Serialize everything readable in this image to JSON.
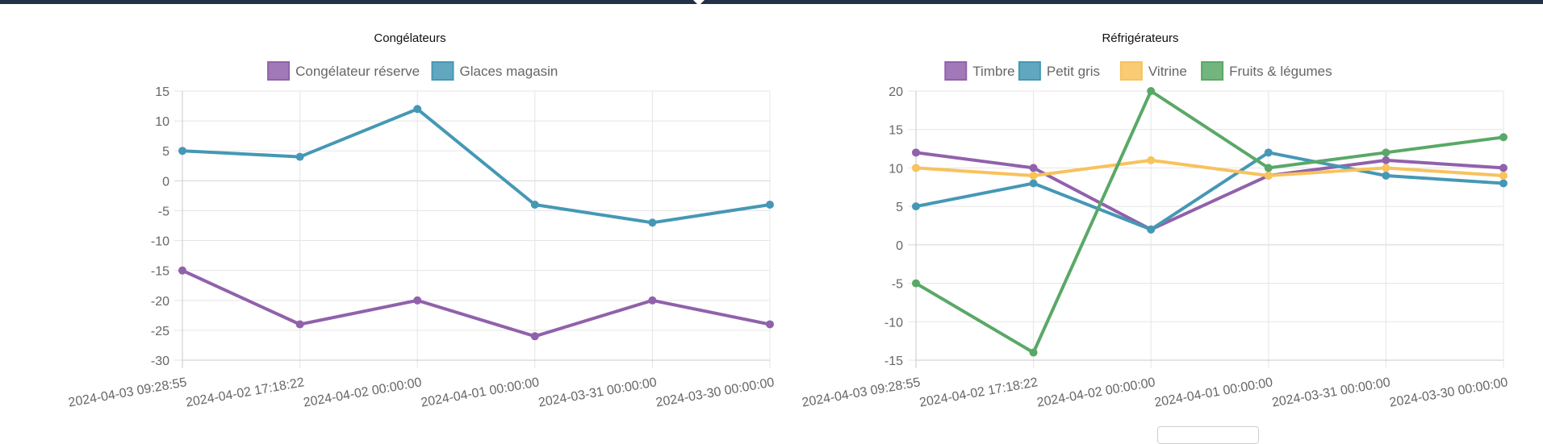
{
  "chart_data": [
    {
      "type": "line",
      "title": "Congélateurs",
      "categories": [
        "2024-04-03 09:28:55",
        "2024-04-02 17:18:22",
        "2024-04-02 00:00:00",
        "2024-04-01 00:00:00",
        "2024-03-31 00:00:00",
        "2024-03-30 00:00:00"
      ],
      "series": [
        {
          "name": "Congélateur réserve",
          "color": "#9161ab",
          "values": [
            -15,
            -24,
            -20,
            -26,
            -20,
            -24
          ]
        },
        {
          "name": "Glaces magasin",
          "color": "#4598b5",
          "values": [
            5,
            4,
            12,
            -4,
            -7,
            -4
          ]
        }
      ],
      "ylim": [
        -30,
        15
      ],
      "yticks": [
        15,
        10,
        5,
        0,
        -5,
        -10,
        -15,
        -20,
        -25,
        -30
      ],
      "grid": true,
      "legend": "top"
    },
    {
      "type": "line",
      "title": "Réfrigérateurs",
      "categories": [
        "2024-04-03 09:28:55",
        "2024-04-02 17:18:22",
        "2024-04-02 00:00:00",
        "2024-04-01 00:00:00",
        "2024-03-31 00:00:00",
        "2024-03-30 00:00:00"
      ],
      "series": [
        {
          "name": "Timbre",
          "color": "#9161ab",
          "values": [
            12,
            10,
            2,
            9,
            11,
            10
          ]
        },
        {
          "name": "Petit gris",
          "color": "#4598b5",
          "values": [
            5,
            8,
            2,
            12,
            9,
            8
          ]
        },
        {
          "name": "Vitrine",
          "color": "#f8c25c",
          "values": [
            10,
            9,
            11,
            9,
            10,
            9
          ]
        },
        {
          "name": "Fruits & légumes",
          "color": "#5aa867",
          "values": [
            -5,
            -14,
            20,
            10,
            12,
            14
          ]
        }
      ],
      "ylim": [
        -15,
        20
      ],
      "yticks": [
        20,
        15,
        10,
        5,
        0,
        -5,
        -10,
        -15
      ],
      "grid": true,
      "legend": "top"
    }
  ]
}
